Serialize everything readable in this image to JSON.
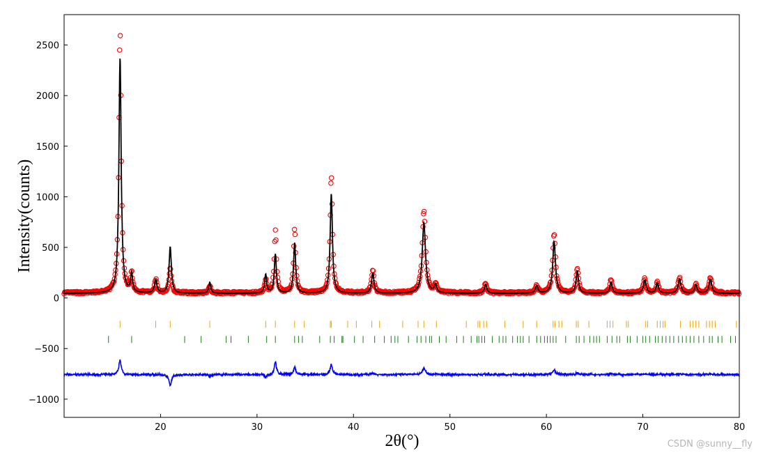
{
  "chart_data": {
    "type": "line",
    "title": "",
    "xlabel": "2θ(°)",
    "ylabel": "Intensity(counts)",
    "xlim": [
      10,
      80
    ],
    "ylim": [
      -1180,
      2800
    ],
    "xticks": [
      20,
      30,
      40,
      50,
      60,
      70,
      80
    ],
    "yticks": [
      -1000,
      -500,
      0,
      500,
      1000,
      1500,
      2000,
      2500
    ],
    "grid": false,
    "legend": "none",
    "background_level": 50,
    "background_level_calc": 45,
    "peaks": [
      {
        "x": 15.8,
        "obs": 2600,
        "calc": 2330,
        "w": 0.14
      },
      {
        "x": 17.0,
        "obs": 180,
        "calc": 190,
        "w": 0.12
      },
      {
        "x": 19.5,
        "obs": 130,
        "calc": 130,
        "w": 0.15
      },
      {
        "x": 21.0,
        "obs": 250,
        "calc": 460,
        "w": 0.14
      },
      {
        "x": 25.1,
        "obs": 75,
        "calc": 110,
        "w": 0.12
      },
      {
        "x": 30.9,
        "obs": 130,
        "calc": 185,
        "w": 0.12
      },
      {
        "x": 31.9,
        "obs": 620,
        "calc": 385,
        "w": 0.13
      },
      {
        "x": 33.9,
        "obs": 630,
        "calc": 500,
        "w": 0.13
      },
      {
        "x": 37.7,
        "obs": 1160,
        "calc": 985,
        "w": 0.14
      },
      {
        "x": 42.0,
        "obs": 230,
        "calc": 200,
        "w": 0.15
      },
      {
        "x": 47.3,
        "obs": 810,
        "calc": 700,
        "w": 0.2
      },
      {
        "x": 48.5,
        "obs": 90,
        "calc": 80,
        "w": 0.15
      },
      {
        "x": 53.7,
        "obs": 95,
        "calc": 90,
        "w": 0.15
      },
      {
        "x": 59.0,
        "obs": 70,
        "calc": 75,
        "w": 0.15
      },
      {
        "x": 60.8,
        "obs": 590,
        "calc": 510,
        "w": 0.17
      },
      {
        "x": 63.2,
        "obs": 250,
        "calc": 220,
        "w": 0.15
      },
      {
        "x": 66.7,
        "obs": 135,
        "calc": 110,
        "w": 0.15
      },
      {
        "x": 70.2,
        "obs": 145,
        "calc": 130,
        "w": 0.17
      },
      {
        "x": 71.5,
        "obs": 110,
        "calc": 100,
        "w": 0.15
      },
      {
        "x": 73.8,
        "obs": 150,
        "calc": 140,
        "w": 0.17
      },
      {
        "x": 75.5,
        "obs": 90,
        "calc": 85,
        "w": 0.15
      },
      {
        "x": 77.0,
        "obs": 150,
        "calc": 140,
        "w": 0.17
      }
    ],
    "series": [
      {
        "key": "observed",
        "style": "open-circles",
        "color": "#ff0000"
      },
      {
        "key": "calculated",
        "style": "line",
        "color": "#000000"
      },
      {
        "key": "difference",
        "style": "line",
        "color": "#0000ff",
        "offset": -760
      }
    ],
    "reflection_markers": [
      {
        "color": "#f0a30a",
        "y": -260,
        "positions": [
          15.8,
          19.5,
          21.0,
          25.1,
          30.9,
          31.9,
          33.9,
          34.9,
          37.6,
          37.7,
          39.4,
          40.3,
          41.9,
          42.7,
          45.1,
          46.7,
          47.3,
          48.6,
          51.7,
          52.9,
          53.1,
          53.5,
          53.8,
          55.7,
          57.6,
          59.0,
          60.7,
          60.9,
          61.3,
          61.6,
          63.1,
          63.3,
          64.4,
          66.3,
          66.6,
          66.9,
          68.3,
          68.5,
          70.3,
          70.5,
          71.5,
          71.8,
          72.1,
          72.3,
          73.9,
          74.9,
          75.2,
          75.5,
          75.8,
          76.6,
          76.9,
          77.2,
          77.5,
          79.7,
          80.0
        ]
      },
      {
        "color": "#1e7b1e",
        "y": -410,
        "positions": [
          14.6,
          17.0,
          22.5,
          24.2,
          26.8,
          27.3,
          29.1,
          31.0,
          31.9,
          33.9,
          34.3,
          34.7,
          36.5,
          37.6,
          38.0,
          38.8,
          38.9,
          40.1,
          41.0,
          42.2,
          43.2,
          43.9,
          44.3,
          44.6,
          45.7,
          46.6,
          47.0,
          47.5,
          47.9,
          48.1,
          48.9,
          49.6,
          50.7,
          51.4,
          52.2,
          52.8,
          53.0,
          53.3,
          53.6,
          54.4,
          55.1,
          55.5,
          55.8,
          56.5,
          57.0,
          57.3,
          57.6,
          58.2,
          59.0,
          59.4,
          59.8,
          60.1,
          60.4,
          60.7,
          61.0,
          62.0,
          63.1,
          63.4,
          63.9,
          64.5,
          64.9,
          65.2,
          65.5,
          66.3,
          66.8,
          67.3,
          67.6,
          68.4,
          68.7,
          69.4,
          70.0,
          70.3,
          70.7,
          71.3,
          71.6,
          72.0,
          72.4,
          72.8,
          73.2,
          73.7,
          74.1,
          74.5,
          74.9,
          75.3,
          75.8,
          76.3,
          76.9,
          77.2,
          77.8,
          78.2,
          79.1,
          79.6,
          80.0
        ]
      }
    ],
    "annotations": [
      {
        "text": "CSDN @sunny__fly",
        "role": "watermark"
      }
    ]
  }
}
